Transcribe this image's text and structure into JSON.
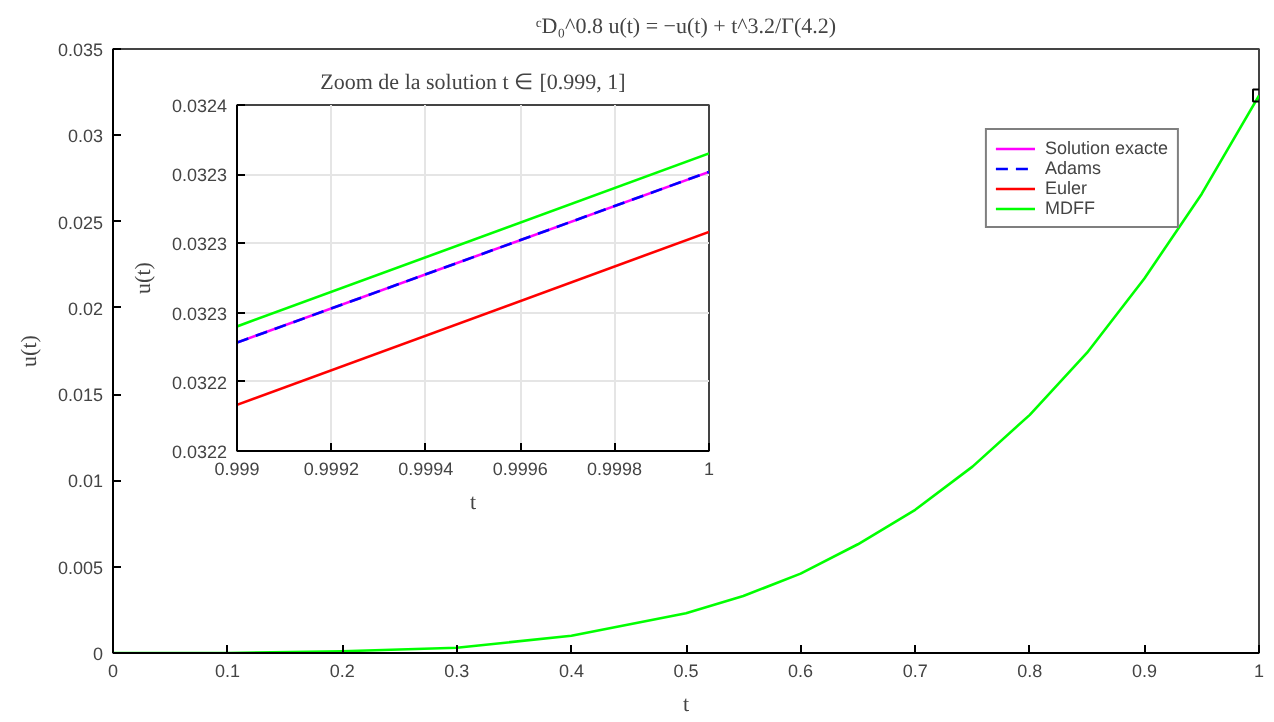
{
  "chart_data": [
    {
      "type": "line",
      "title": "ᶜD₀^0.8 u(t) = −u(t) + t^3.2/Γ(4.2)",
      "xlabel": "t",
      "ylabel": "u(t)",
      "x": [
        0,
        0.1,
        0.2,
        0.3,
        0.4,
        0.5,
        0.55,
        0.6,
        0.65,
        0.7,
        0.75,
        0.8,
        0.85,
        0.9,
        0.95,
        1
      ],
      "xlim": [
        0,
        1
      ],
      "xticks": [
        0,
        0.1,
        0.2,
        0.3,
        0.4,
        0.5,
        0.6,
        0.7,
        0.8,
        0.9,
        1
      ],
      "ylim": [
        0,
        0.035
      ],
      "yticks": [
        0,
        0.005,
        0.01,
        0.015,
        0.02,
        0.025,
        0.03,
        0.035
      ],
      "grid": false,
      "legend": "top right",
      "series": [
        {
          "name": "Solution exacte",
          "color": "#ff00ff",
          "line_style": "solid",
          "values": [
            null,
            null,
            null,
            null,
            null,
            null,
            null,
            null,
            null,
            null,
            null,
            null,
            null,
            null,
            null,
            null
          ]
        },
        {
          "name": "Adams",
          "color": "#0000ff",
          "line_style": "dashed",
          "values": [
            null,
            null,
            null,
            null,
            null,
            null,
            null,
            null,
            null,
            null,
            null,
            null,
            null,
            null,
            null,
            null
          ]
        },
        {
          "name": "Euler",
          "color": "#ff0000",
          "line_style": "solid",
          "values": [
            null,
            null,
            null,
            null,
            null,
            null,
            null,
            null,
            null,
            null,
            null,
            null,
            null,
            null,
            null,
            null
          ]
        },
        {
          "name": "MDFF",
          "color": "#00ff00",
          "line_style": "solid",
          "values": [
            0,
            0,
            0.0001,
            0.0003,
            0.001,
            0.0023,
            0.0033,
            0.0046,
            0.0063,
            0.0083,
            0.0108,
            0.0138,
            0.0174,
            0.0217,
            0.0266,
            0.0323
          ]
        },
        {
          "type": "scatter",
          "marker": "square",
          "color": "#000000",
          "x": [
            1
          ],
          "values": [
            0.0323
          ]
        }
      ]
    },
    {
      "type": "line",
      "title": "Zoom de la solution t ∈ [0.999, 1]",
      "xlabel": "t",
      "ylabel": "u(t)",
      "x": [
        0.999,
        1
      ],
      "xlim": [
        0.999,
        1
      ],
      "xticks": [
        0.999,
        0.9992,
        0.9994,
        0.9996,
        0.9998,
        1
      ],
      "ylim": [
        0.0322,
        0.03235
      ],
      "yticks": [
        {
          "value": 0.0322,
          "label": "0.0322"
        },
        {
          "value": 0.03223,
          "label": "0.0322"
        },
        {
          "value": 0.03226,
          "label": "0.0323"
        },
        {
          "value": 0.03229,
          "label": "0.0323"
        },
        {
          "value": 0.03232,
          "label": "0.0323"
        },
        {
          "value": 0.03235,
          "label": "0.0324"
        }
      ],
      "grid": true,
      "legend": false,
      "series": [
        {
          "color": "#ff00ff",
          "line_style": "solid",
          "values": [
            0.032247,
            0.032321
          ]
        },
        {
          "color": "#0000ff",
          "line_style": "dashed",
          "values": [
            0.032247,
            0.032321
          ]
        },
        {
          "color": "#ff0000",
          "line_style": "solid",
          "values": [
            0.03222,
            0.032295
          ]
        },
        {
          "color": "#00ff00",
          "line_style": "solid",
          "values": [
            0.032254,
            0.032329
          ]
        }
      ]
    }
  ]
}
